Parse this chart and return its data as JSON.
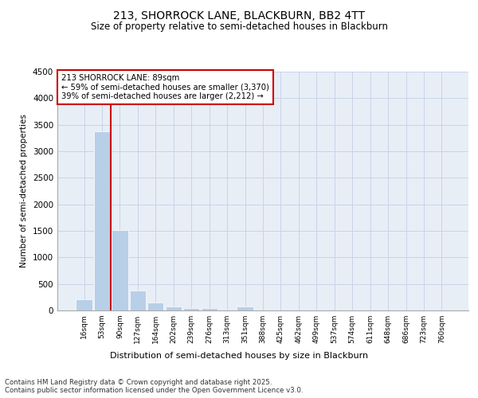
{
  "title1": "213, SHORROCK LANE, BLACKBURN, BB2 4TT",
  "title2": "Size of property relative to semi-detached houses in Blackburn",
  "xlabel": "Distribution of semi-detached houses by size in Blackburn",
  "ylabel": "Number of semi-detached properties",
  "bin_labels": [
    "16sqm",
    "53sqm",
    "90sqm",
    "127sqm",
    "164sqm",
    "202sqm",
    "239sqm",
    "276sqm",
    "313sqm",
    "351sqm",
    "388sqm",
    "425sqm",
    "462sqm",
    "499sqm",
    "537sqm",
    "574sqm",
    "611sqm",
    "648sqm",
    "686sqm",
    "723sqm",
    "760sqm"
  ],
  "bar_values": [
    205,
    3370,
    1510,
    380,
    155,
    75,
    50,
    50,
    0,
    75,
    0,
    0,
    0,
    0,
    0,
    0,
    0,
    0,
    0,
    0,
    0
  ],
  "bar_color": "#b8cfe8",
  "vline_color": "#cc0000",
  "vline_position": 1.5,
  "annotation_text": "213 SHORROCK LANE: 89sqm\n← 59% of semi-detached houses are smaller (3,370)\n39% of semi-detached houses are larger (2,212) →",
  "annotation_box_color": "#cc0000",
  "ylim": [
    0,
    4500
  ],
  "yticks": [
    0,
    500,
    1000,
    1500,
    2000,
    2500,
    3000,
    3500,
    4000,
    4500
  ],
  "grid_color": "#c8d4e8",
  "bg_color": "#e8eef6",
  "footer": "Contains HM Land Registry data © Crown copyright and database right 2025.\nContains public sector information licensed under the Open Government Licence v3.0."
}
